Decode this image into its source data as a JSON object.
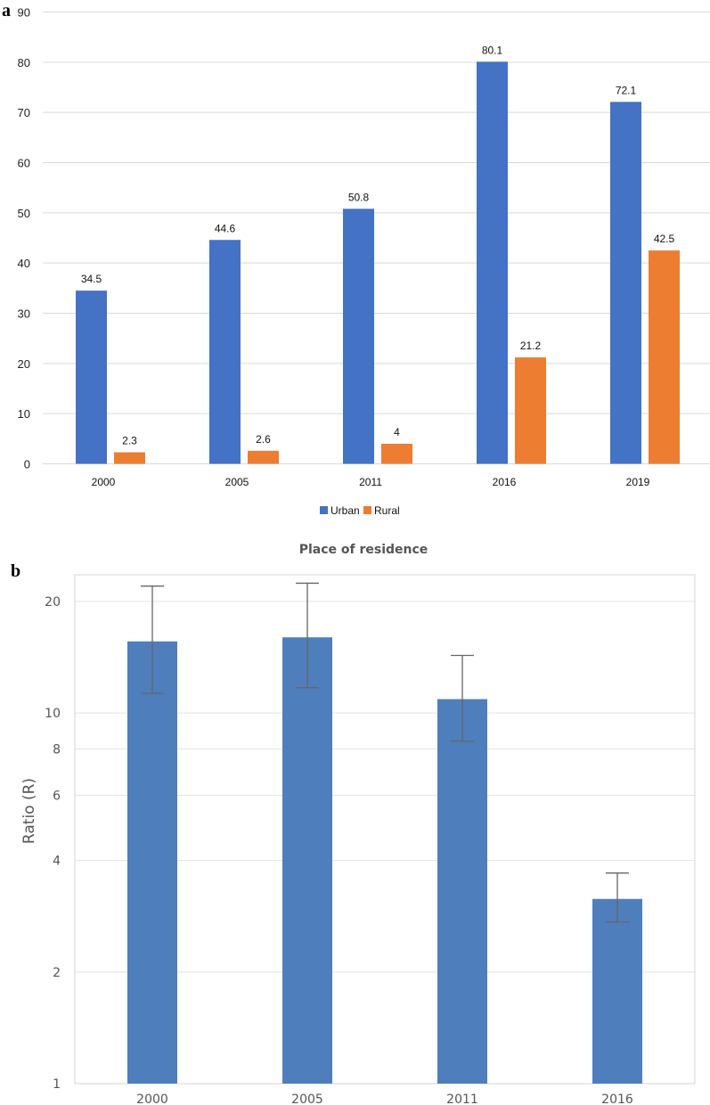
{
  "chart_data": [
    {
      "type": "bar",
      "panel_label": "a",
      "categories": [
        "2000",
        "2005",
        "2011",
        "2016",
        "2019"
      ],
      "series": [
        {
          "name": "Urban",
          "color": "#4472C4",
          "values": [
            34.5,
            44.6,
            50.8,
            80.1,
            72.1
          ]
        },
        {
          "name": "Rural",
          "color": "#ED7D31",
          "values": [
            2.3,
            2.6,
            4,
            21.2,
            42.5
          ]
        }
      ],
      "data_labels": {
        "Urban": [
          "34.5",
          "44.6",
          "50.8",
          "80.1",
          "72.1"
        ],
        "Rural": [
          "2.3",
          "2.6",
          "4",
          "21.2",
          "42.5"
        ]
      },
      "ylim": [
        0,
        90
      ],
      "yticks": [
        "0",
        "10",
        "20",
        "30",
        "40",
        "50",
        "60",
        "70",
        "80",
        "90"
      ],
      "grid": true,
      "legend": "bottom",
      "title": "",
      "xlabel": "",
      "ylabel": ""
    },
    {
      "type": "bar",
      "panel_label": "b",
      "title": "Place of residence",
      "ylabel": "Ratio (R)",
      "xlabel": "",
      "yscale": "log",
      "categories": [
        "2000",
        "2005",
        "2011",
        "2016"
      ],
      "values": [
        15.6,
        16.0,
        10.9,
        3.15
      ],
      "error_low": [
        11.3,
        11.7,
        8.4,
        2.73
      ],
      "error_high": [
        22.0,
        22.4,
        14.3,
        3.7
      ],
      "color": "#4F7EBC",
      "ylim": [
        1,
        23.6
      ],
      "yticks": [
        "1",
        "2",
        "4",
        "6",
        "8",
        "10",
        "20"
      ],
      "grid": true
    }
  ]
}
